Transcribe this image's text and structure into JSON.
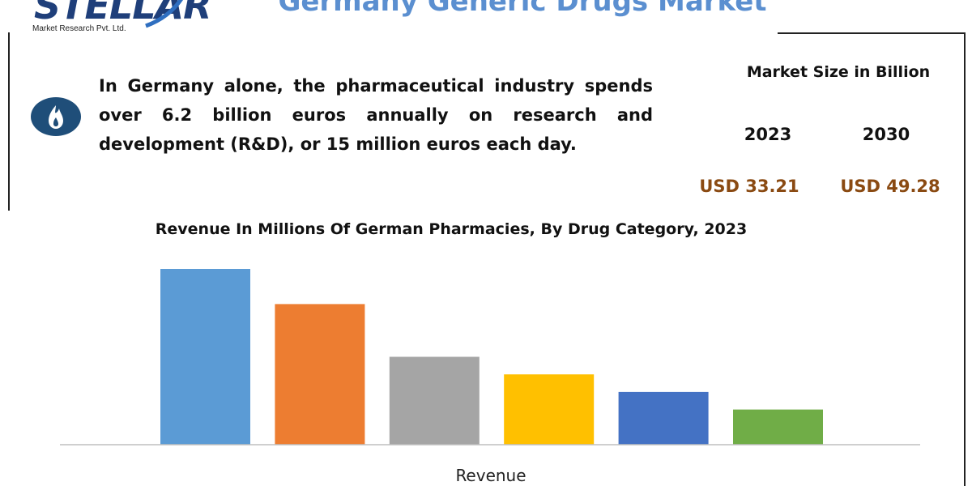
{
  "logo": {
    "wordmark": "STELLAR",
    "subtitle": "Market Research Pvt. Ltd."
  },
  "page": {
    "title": "Germany Generic Drugs Market"
  },
  "fact": {
    "icon": "flame-icon",
    "text": "In Germany alone, the pharmaceutical industry spends over 6.2 billion euros annually on research and development (R&D), or 15 million euros each day."
  },
  "market_size": {
    "title": "Market Size in Billion",
    "years": [
      "2023",
      "2030"
    ],
    "values": [
      "USD 33.21",
      "USD 49.28"
    ]
  },
  "colors": {
    "title_blue": "#5b8fd0",
    "value_brown": "#8a4a12",
    "logo_navy": "#1f3f7a"
  },
  "chart_data": {
    "type": "bar",
    "title": "Revenue In Millions Of German Pharmacies, By Drug Category, 2023",
    "xlabel": "Revenue",
    "ylabel": "",
    "ylim": [
      0,
      10
    ],
    "grid": false,
    "values": [
      10,
      8,
      5,
      4,
      3,
      2
    ],
    "colors": [
      "#5b9bd5",
      "#ed7d31",
      "#a5a5a5",
      "#ffc000",
      "#4472c4",
      "#70ad47"
    ]
  }
}
